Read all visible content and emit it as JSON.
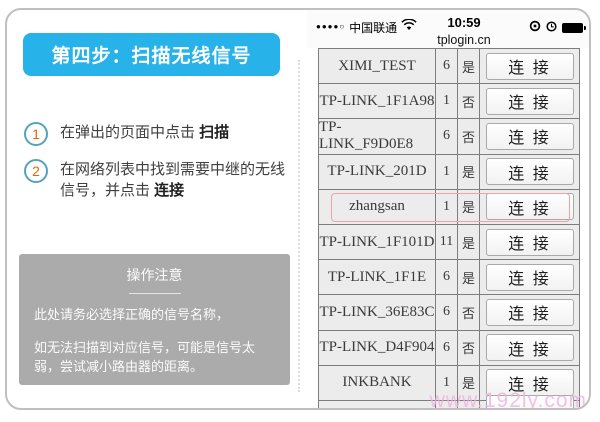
{
  "colors": {
    "accent_blue": "#27b2e9",
    "step_number_orange": "#e2660d",
    "notice_gray": "#ababab",
    "highlight_pink": "#f0a3a3",
    "watermark_pink": "#efb2e0"
  },
  "left_panel": {
    "banner": "第四步：扫描无线信号",
    "steps": [
      {
        "num": "1",
        "text": "在弹出的页面中点击 ",
        "bold": "扫描"
      },
      {
        "num": "2",
        "text": "在网络列表中找到需要中继的无线信号，并点击 ",
        "bold": "连接"
      }
    ],
    "notice": {
      "title": "操作注意",
      "para1": "此处请务必选择正确的信号名称，",
      "para2": "如无法扫描到对应信号，可能是信号太弱，尝试减小路由器的距离。"
    }
  },
  "phone": {
    "status_bar": {
      "signal_dots": "●●●●○",
      "carrier": "中国联通",
      "time": "10:59",
      "url": "tplogin.cn"
    },
    "table": {
      "connect_label": "连 接",
      "rows": [
        {
          "ssid": "XIMI_TEST",
          "channel": "6",
          "secured": "是",
          "highlighted": false
        },
        {
          "ssid": "TP-LINK_1F1A98",
          "channel": "1",
          "secured": "否",
          "highlighted": false
        },
        {
          "ssid": "TP-LINK_F9D0E8",
          "channel": "6",
          "secured": "否",
          "highlighted": false
        },
        {
          "ssid": "TP-LINK_201D",
          "channel": "1",
          "secured": "是",
          "highlighted": false
        },
        {
          "ssid": "zhangsan",
          "channel": "1",
          "secured": "是",
          "highlighted": true
        },
        {
          "ssid": "TP-LINK_1F101D",
          "channel": "11",
          "secured": "是",
          "highlighted": false
        },
        {
          "ssid": "TP-LINK_1F1E",
          "channel": "6",
          "secured": "是",
          "highlighted": false
        },
        {
          "ssid": "TP-LINK_36E83C",
          "channel": "6",
          "secured": "否",
          "highlighted": false
        },
        {
          "ssid": "TP-LINK_D4F904",
          "channel": "6",
          "secured": "否",
          "highlighted": false
        },
        {
          "ssid": "INKBANK",
          "channel": "1",
          "secured": "是",
          "highlighted": false
        }
      ]
    }
  },
  "watermark": "www.192ly.com"
}
